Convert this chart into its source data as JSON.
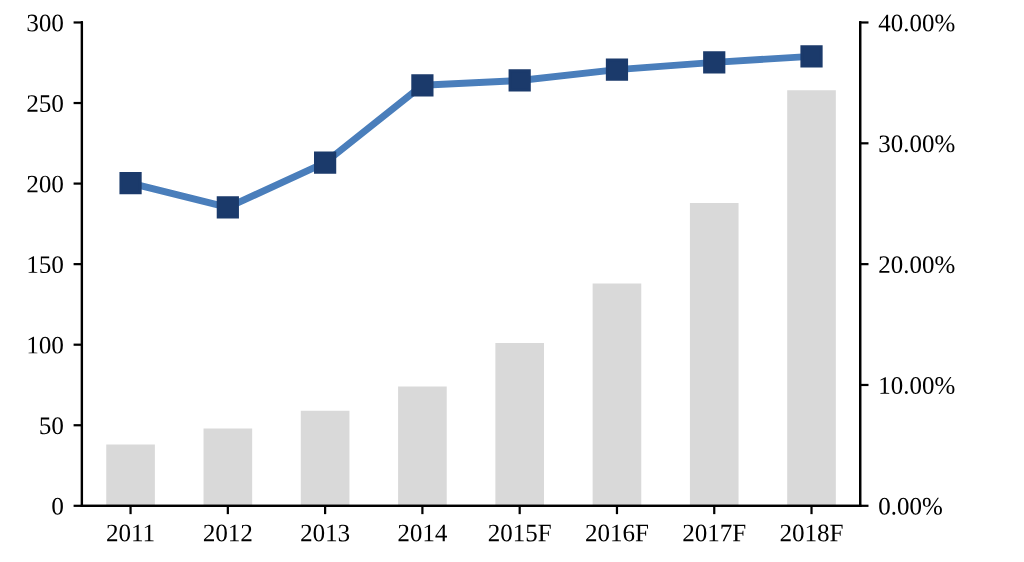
{
  "chart_data": {
    "type": "bar",
    "categories": [
      "2011",
      "2012",
      "2013",
      "2014",
      "2015F",
      "2016F",
      "2017F",
      "2018F"
    ],
    "series": [
      {
        "color": "#d9d9d9",
        "values": [
          38,
          48,
          59,
          74,
          101,
          138,
          188,
          258
        ]
      },
      {
        "type": "line",
        "axis": "y2",
        "color": "#4a7ebb",
        "values": [
          26.7,
          24.7,
          28.4,
          34.8,
          35.2,
          36.1,
          36.7,
          37.2
        ]
      }
    ],
    "ylim": [
      0,
      300
    ],
    "yticks": [
      0,
      50,
      100,
      150,
      200,
      250,
      300
    ],
    "y2lim": [
      0,
      40
    ],
    "y2ticks": [
      {
        "value": 0,
        "label": "0.00%"
      },
      {
        "value": 10,
        "label": "10.00%"
      },
      {
        "value": 20,
        "label": "20.00%"
      },
      {
        "value": 30,
        "label": "30.00%"
      },
      {
        "value": 40,
        "label": "40.00%"
      }
    ],
    "marker": "square",
    "line_style": "solid",
    "grid": false,
    "legend": false
  }
}
